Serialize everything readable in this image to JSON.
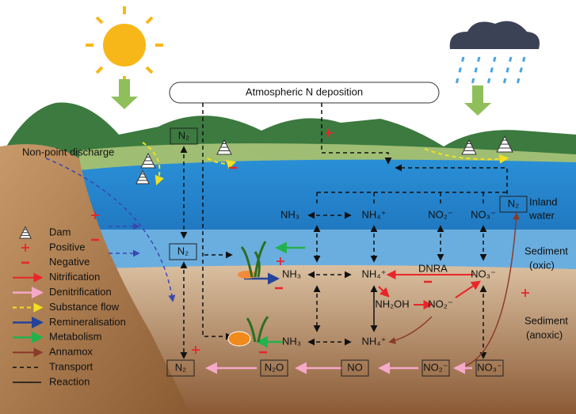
{
  "header": {
    "title": "Atmospheric N deposition"
  },
  "labels": {
    "non_point": "Non-point discharge",
    "inland_water": [
      "Inland",
      "water"
    ],
    "sediment_oxic": [
      "Sediment",
      "(oxic)"
    ],
    "sediment_anoxic": [
      "Sediment",
      "(anoxic)"
    ],
    "dnra": "DNRA"
  },
  "nodes": [
    {
      "label": "N₂"
    },
    {
      "label": "N₂"
    },
    {
      "label": "NH₃"
    },
    {
      "label": "NH₄⁺"
    },
    {
      "label": "NO₂⁻"
    },
    {
      "label": "NO₃⁻"
    },
    {
      "label": "N₂"
    },
    {
      "label": "NH₃"
    },
    {
      "label": "NH₄⁺"
    },
    {
      "label": "NO₃⁻"
    },
    {
      "label": "NH₂OH"
    },
    {
      "label": "NO₂⁻"
    },
    {
      "label": "NH₃"
    },
    {
      "label": "NH₄⁺"
    },
    {
      "label": "N₂"
    },
    {
      "label": "N₂O"
    },
    {
      "label": "NO"
    },
    {
      "label": "NO₂⁻"
    },
    {
      "label": "NO₃⁻"
    }
  ],
  "legend": [
    "Dam",
    "Positive",
    "Negative",
    "Nitrification",
    "Denitrification",
    "Substance flow",
    "Remineralisation",
    "Metabolism",
    "Annamox",
    "Transport",
    "Reaction"
  ]
}
